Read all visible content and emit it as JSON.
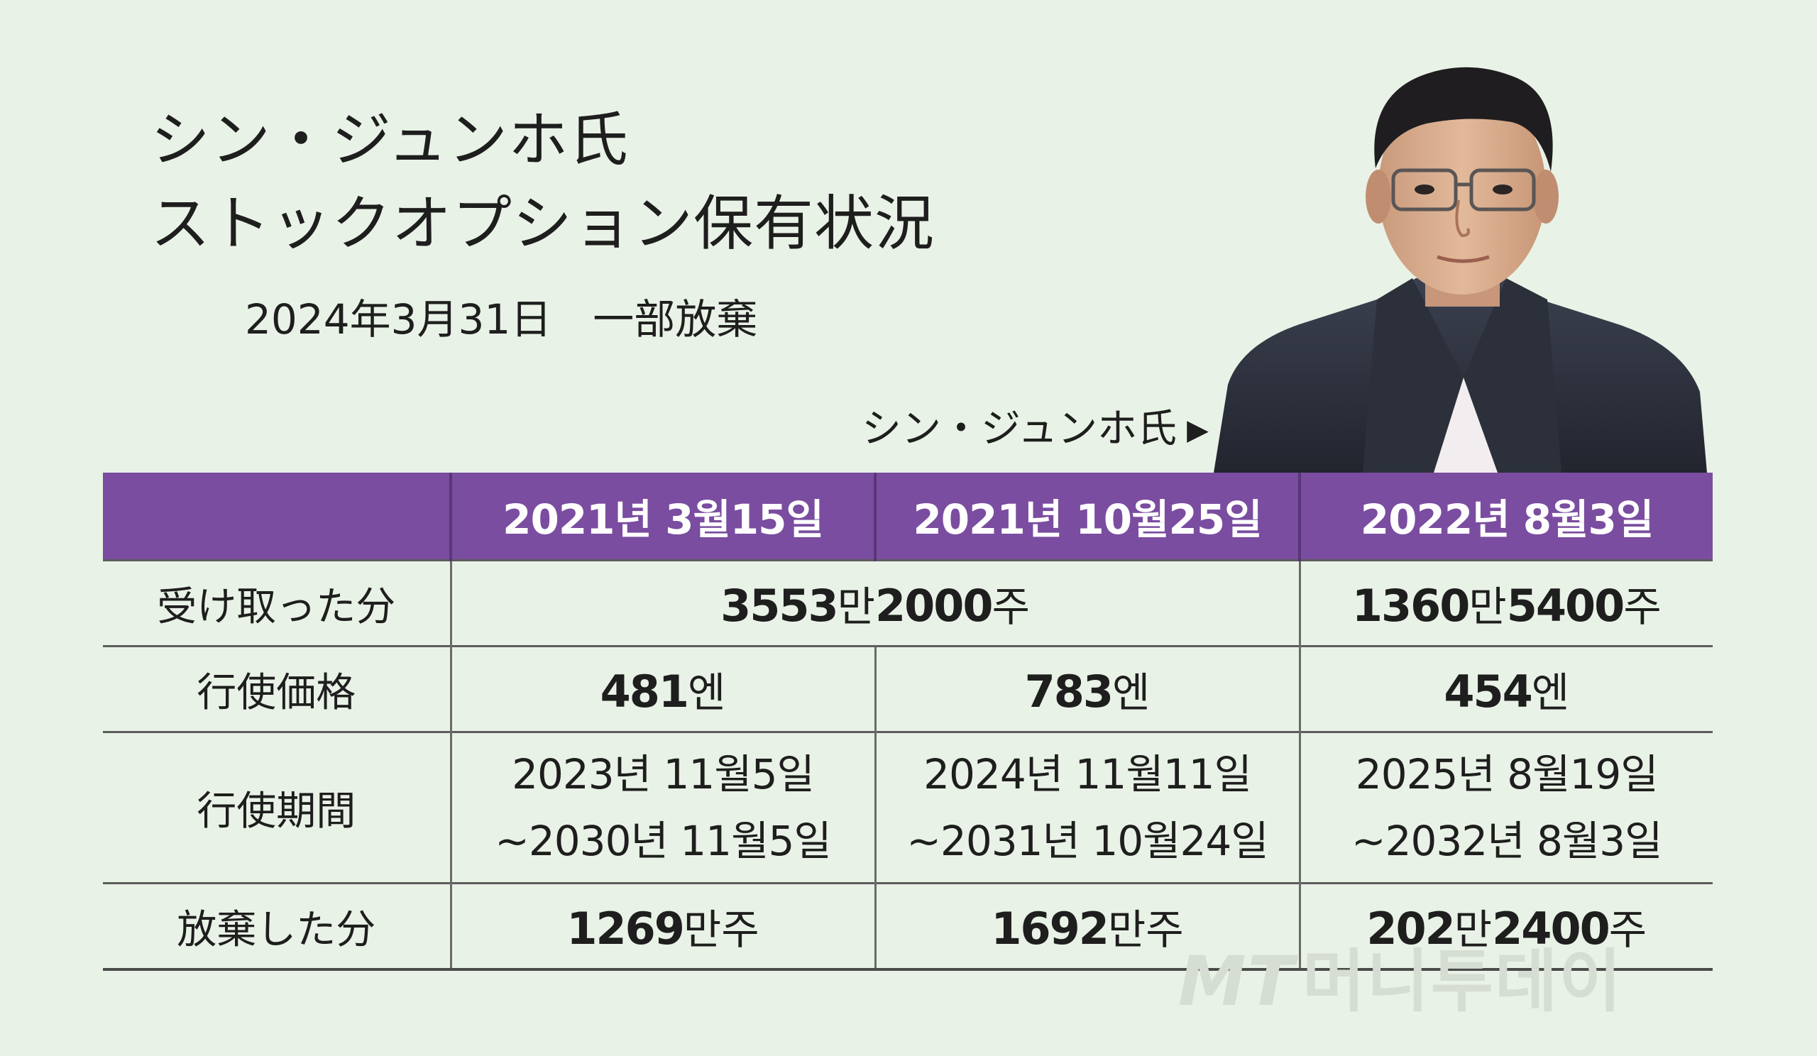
{
  "title": {
    "line1": "シン・ジュンホ氏",
    "line2": "ストックオプション保有状況"
  },
  "subtitle": "2024年3月31日　一部放棄",
  "person_label": "シン・ジュンホ氏",
  "person_arrow": "▶",
  "table": {
    "headers": [
      "",
      "2021년 3월15일",
      "2021년 10월25일",
      "2022년 8월3일"
    ],
    "rows": {
      "received": {
        "label": "受け取った分",
        "merged_2021": {
          "num1": "3553",
          "unit1": "만",
          "num2": "2000",
          "unit2": "주"
        },
        "col3": {
          "num1": "1360",
          "unit1": "만",
          "num2": "5400",
          "unit2": "주"
        }
      },
      "price": {
        "label": "行使価格",
        "values": [
          {
            "num": "481",
            "unit": "엔"
          },
          {
            "num": "783",
            "unit": "엔"
          },
          {
            "num": "454",
            "unit": "엔"
          }
        ]
      },
      "period": {
        "label": "行使期間",
        "values": [
          {
            "start": "2023년 11월5일",
            "end": "~2030년 11월5일"
          },
          {
            "start": "2024년 11월11일",
            "end": "~2031년 10월24일"
          },
          {
            "start": "2025년 8월19일",
            "end": "~2032년 8월3일"
          }
        ]
      },
      "abandoned": {
        "label": "放棄した分",
        "values": [
          {
            "num1": "1269",
            "unit1": "만주",
            "num2": "",
            "unit2": ""
          },
          {
            "num1": "1692",
            "unit1": "만주",
            "num2": "",
            "unit2": ""
          },
          {
            "num1": "202",
            "unit1": "만",
            "num2": "2400",
            "unit2": "주"
          }
        ]
      }
    }
  },
  "watermark": {
    "logo": "MT",
    "text": "머니투데이"
  },
  "colors": {
    "background": "#e9f2e6",
    "header": "#7a4da0"
  }
}
